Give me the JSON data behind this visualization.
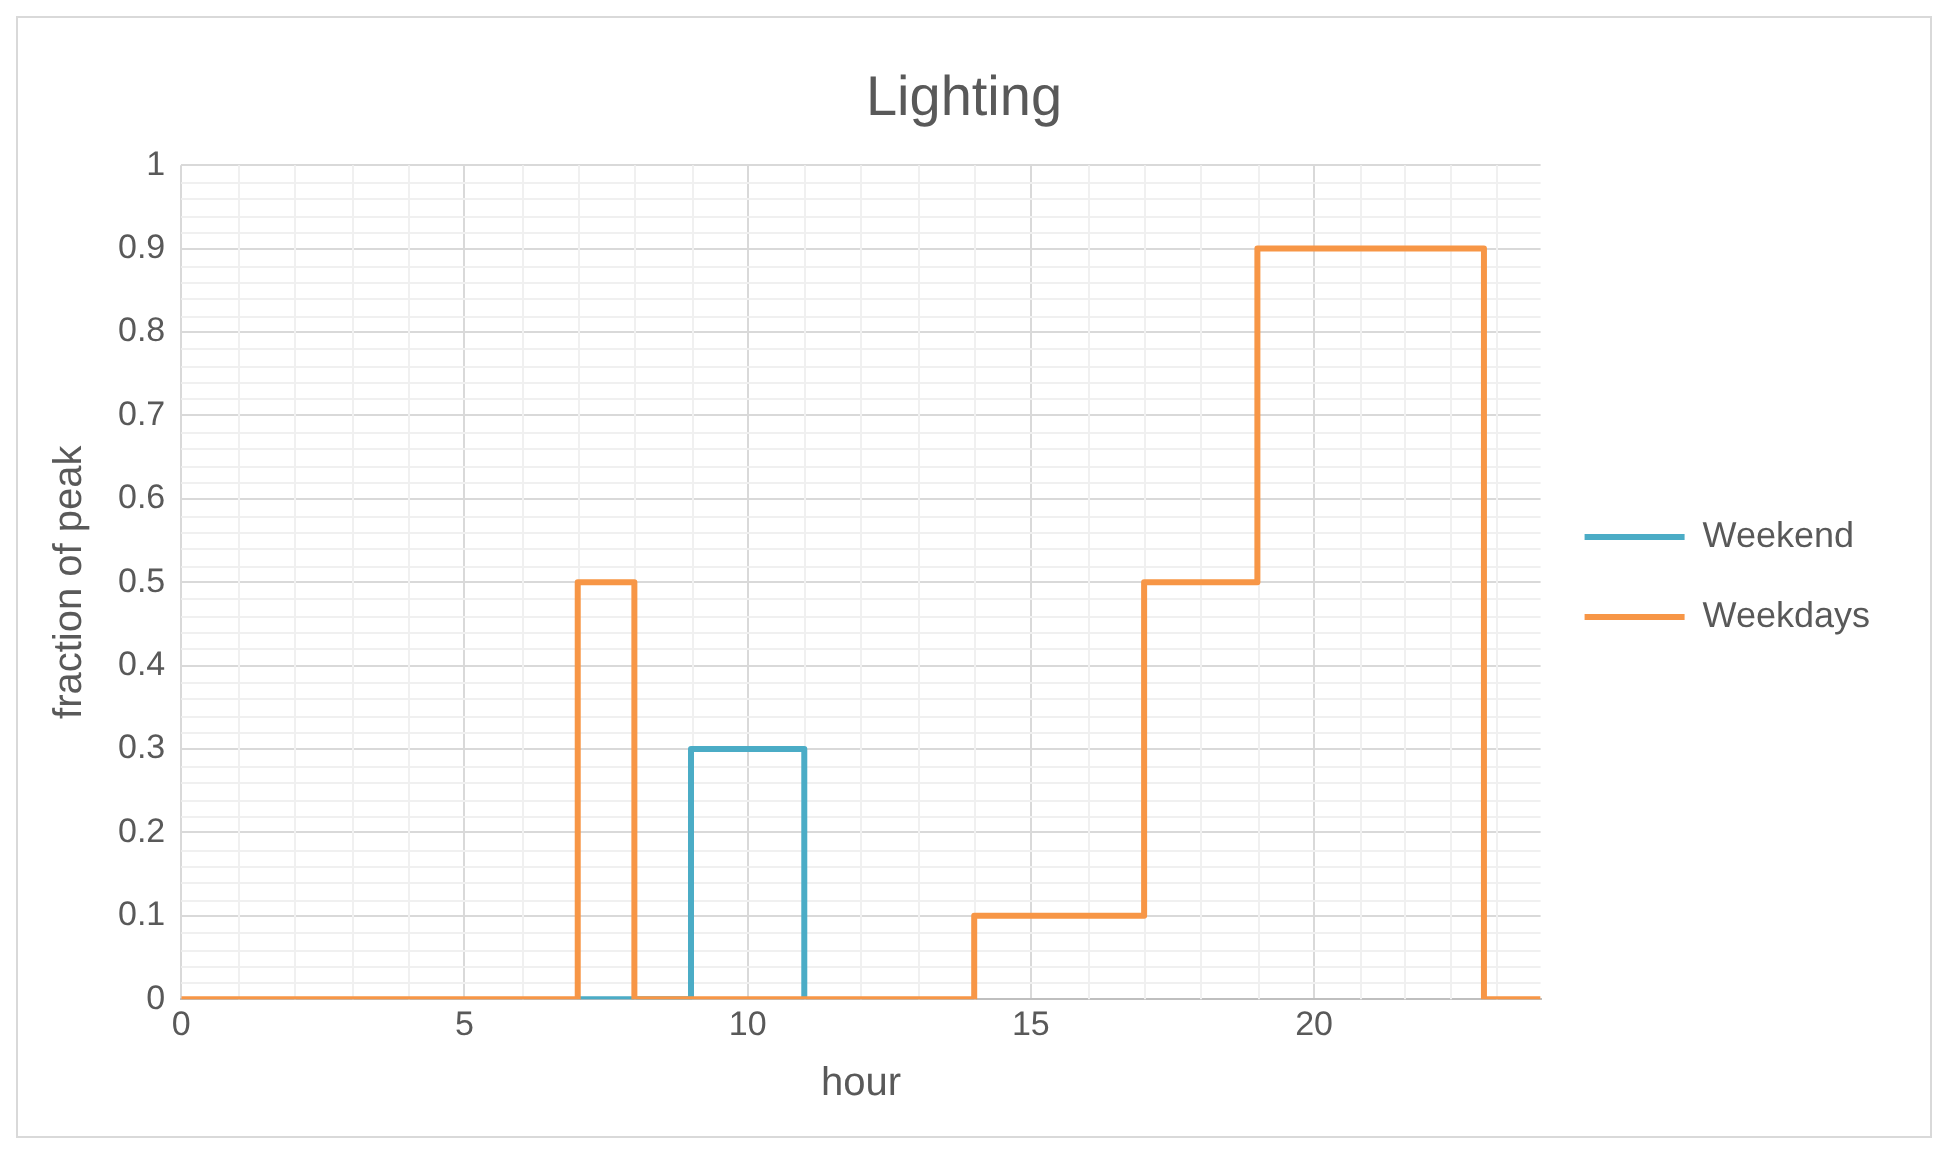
{
  "chart_data": {
    "type": "step",
    "title": "Lighting",
    "xlabel": "hour",
    "ylabel": "fraction of peak",
    "x": [
      0,
      1,
      2,
      3,
      4,
      5,
      6,
      7,
      8,
      9,
      10,
      11,
      12,
      13,
      14,
      15,
      16,
      17,
      18,
      19,
      20,
      21,
      22,
      23,
      24
    ],
    "series": [
      {
        "name": "Weekend",
        "color": "#4bacc6",
        "values": [
          null,
          null,
          null,
          null,
          null,
          null,
          null,
          0,
          0,
          0.3,
          0.3,
          0,
          null,
          null,
          null,
          null,
          null,
          null,
          null,
          null,
          null,
          null,
          null,
          null,
          null
        ]
      },
      {
        "name": "Weekdays",
        "color": "#f79646",
        "values": [
          0,
          0,
          0,
          0,
          0,
          0,
          0,
          0.5,
          0,
          0,
          0,
          0,
          0,
          0,
          0.1,
          0.1,
          0.1,
          0.5,
          0.5,
          0.9,
          0.9,
          0.9,
          0.9,
          0,
          0
        ]
      }
    ],
    "xlim": [
      0,
      24
    ],
    "xticks": [
      0,
      5,
      10,
      15,
      20
    ],
    "ylim": [
      0,
      1
    ],
    "yticks": [
      0,
      0.1,
      0.2,
      0.3,
      0.4,
      0.5,
      0.6,
      0.7,
      0.8,
      0.9,
      {
        "value": 1,
        "label": "1"
      }
    ],
    "grid": true,
    "legend": "right",
    "marker": "none",
    "line_style": "solid"
  }
}
